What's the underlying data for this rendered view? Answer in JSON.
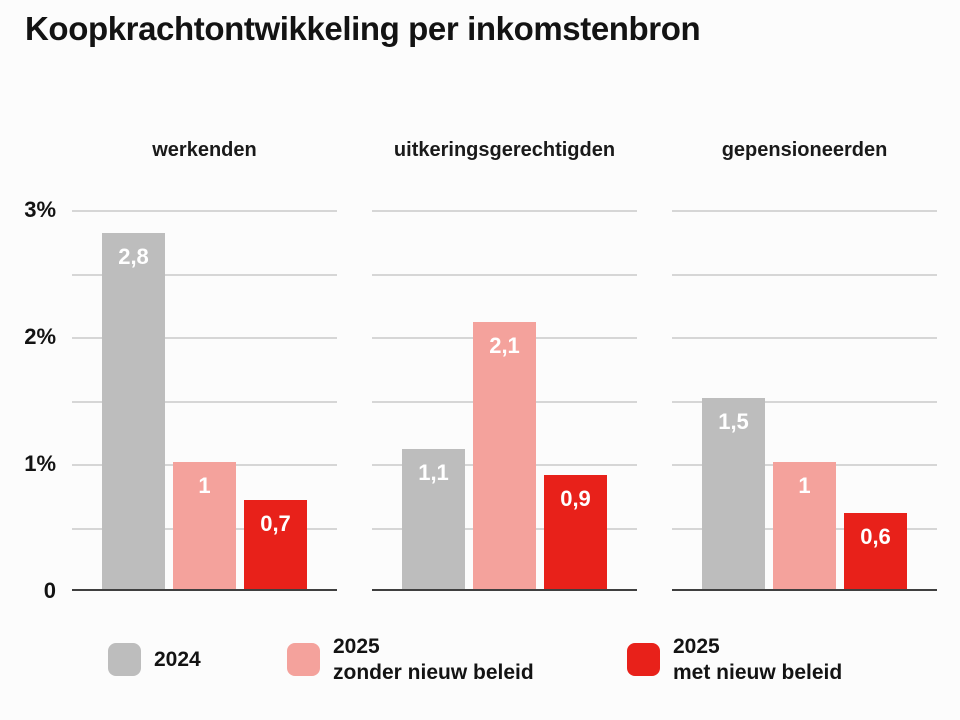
{
  "page": {
    "title": "Koopkrachtontwikkeling per inkomstenbron"
  },
  "chart_data": {
    "type": "bar",
    "title": "Koopkrachtontwikkeling per inkomstenbron",
    "categories": [
      "werkenden",
      "uitkeringsgerechtigden",
      "gepensioneerden"
    ],
    "series": [
      {
        "name": "2024",
        "color": "#bdbdbd",
        "values": [
          2.8,
          1.1,
          1.5
        ],
        "value_labels": [
          "2,8",
          "1,1",
          "1,5"
        ]
      },
      {
        "name": "2025 zonder nieuw beleid",
        "color": "#f4a29c",
        "values": [
          1.0,
          2.1,
          1.0
        ],
        "value_labels": [
          "1",
          "2,1",
          "1"
        ]
      },
      {
        "name": "2025 met nieuw beleid",
        "color": "#e8211a",
        "values": [
          0.7,
          0.9,
          0.6
        ],
        "value_labels": [
          "0,7",
          "0,9",
          "0,6"
        ]
      }
    ],
    "ylim": [
      0,
      3
    ],
    "yticks": [
      {
        "value": 3,
        "label": "3%"
      },
      {
        "value": 2,
        "label": "2%"
      },
      {
        "value": 1,
        "label": "1%"
      },
      {
        "value": 0,
        "label": "0"
      }
    ],
    "grid": true,
    "gridline_step": 0.5,
    "legend_position": "bottom",
    "legend": [
      {
        "lines": [
          "2024"
        ],
        "color": "#bdbdbd"
      },
      {
        "lines": [
          "2025",
          "zonder nieuw beleid"
        ],
        "color": "#f4a29c"
      },
      {
        "lines": [
          "2025",
          "met nieuw beleid"
        ],
        "color": "#e8211a"
      }
    ]
  },
  "colors": {
    "background": "#fcfcfc",
    "text": "#131313",
    "bar_value_label": "#ffffff",
    "gridline": "#d6d6d6",
    "baseline": "#3f3f3f"
  }
}
